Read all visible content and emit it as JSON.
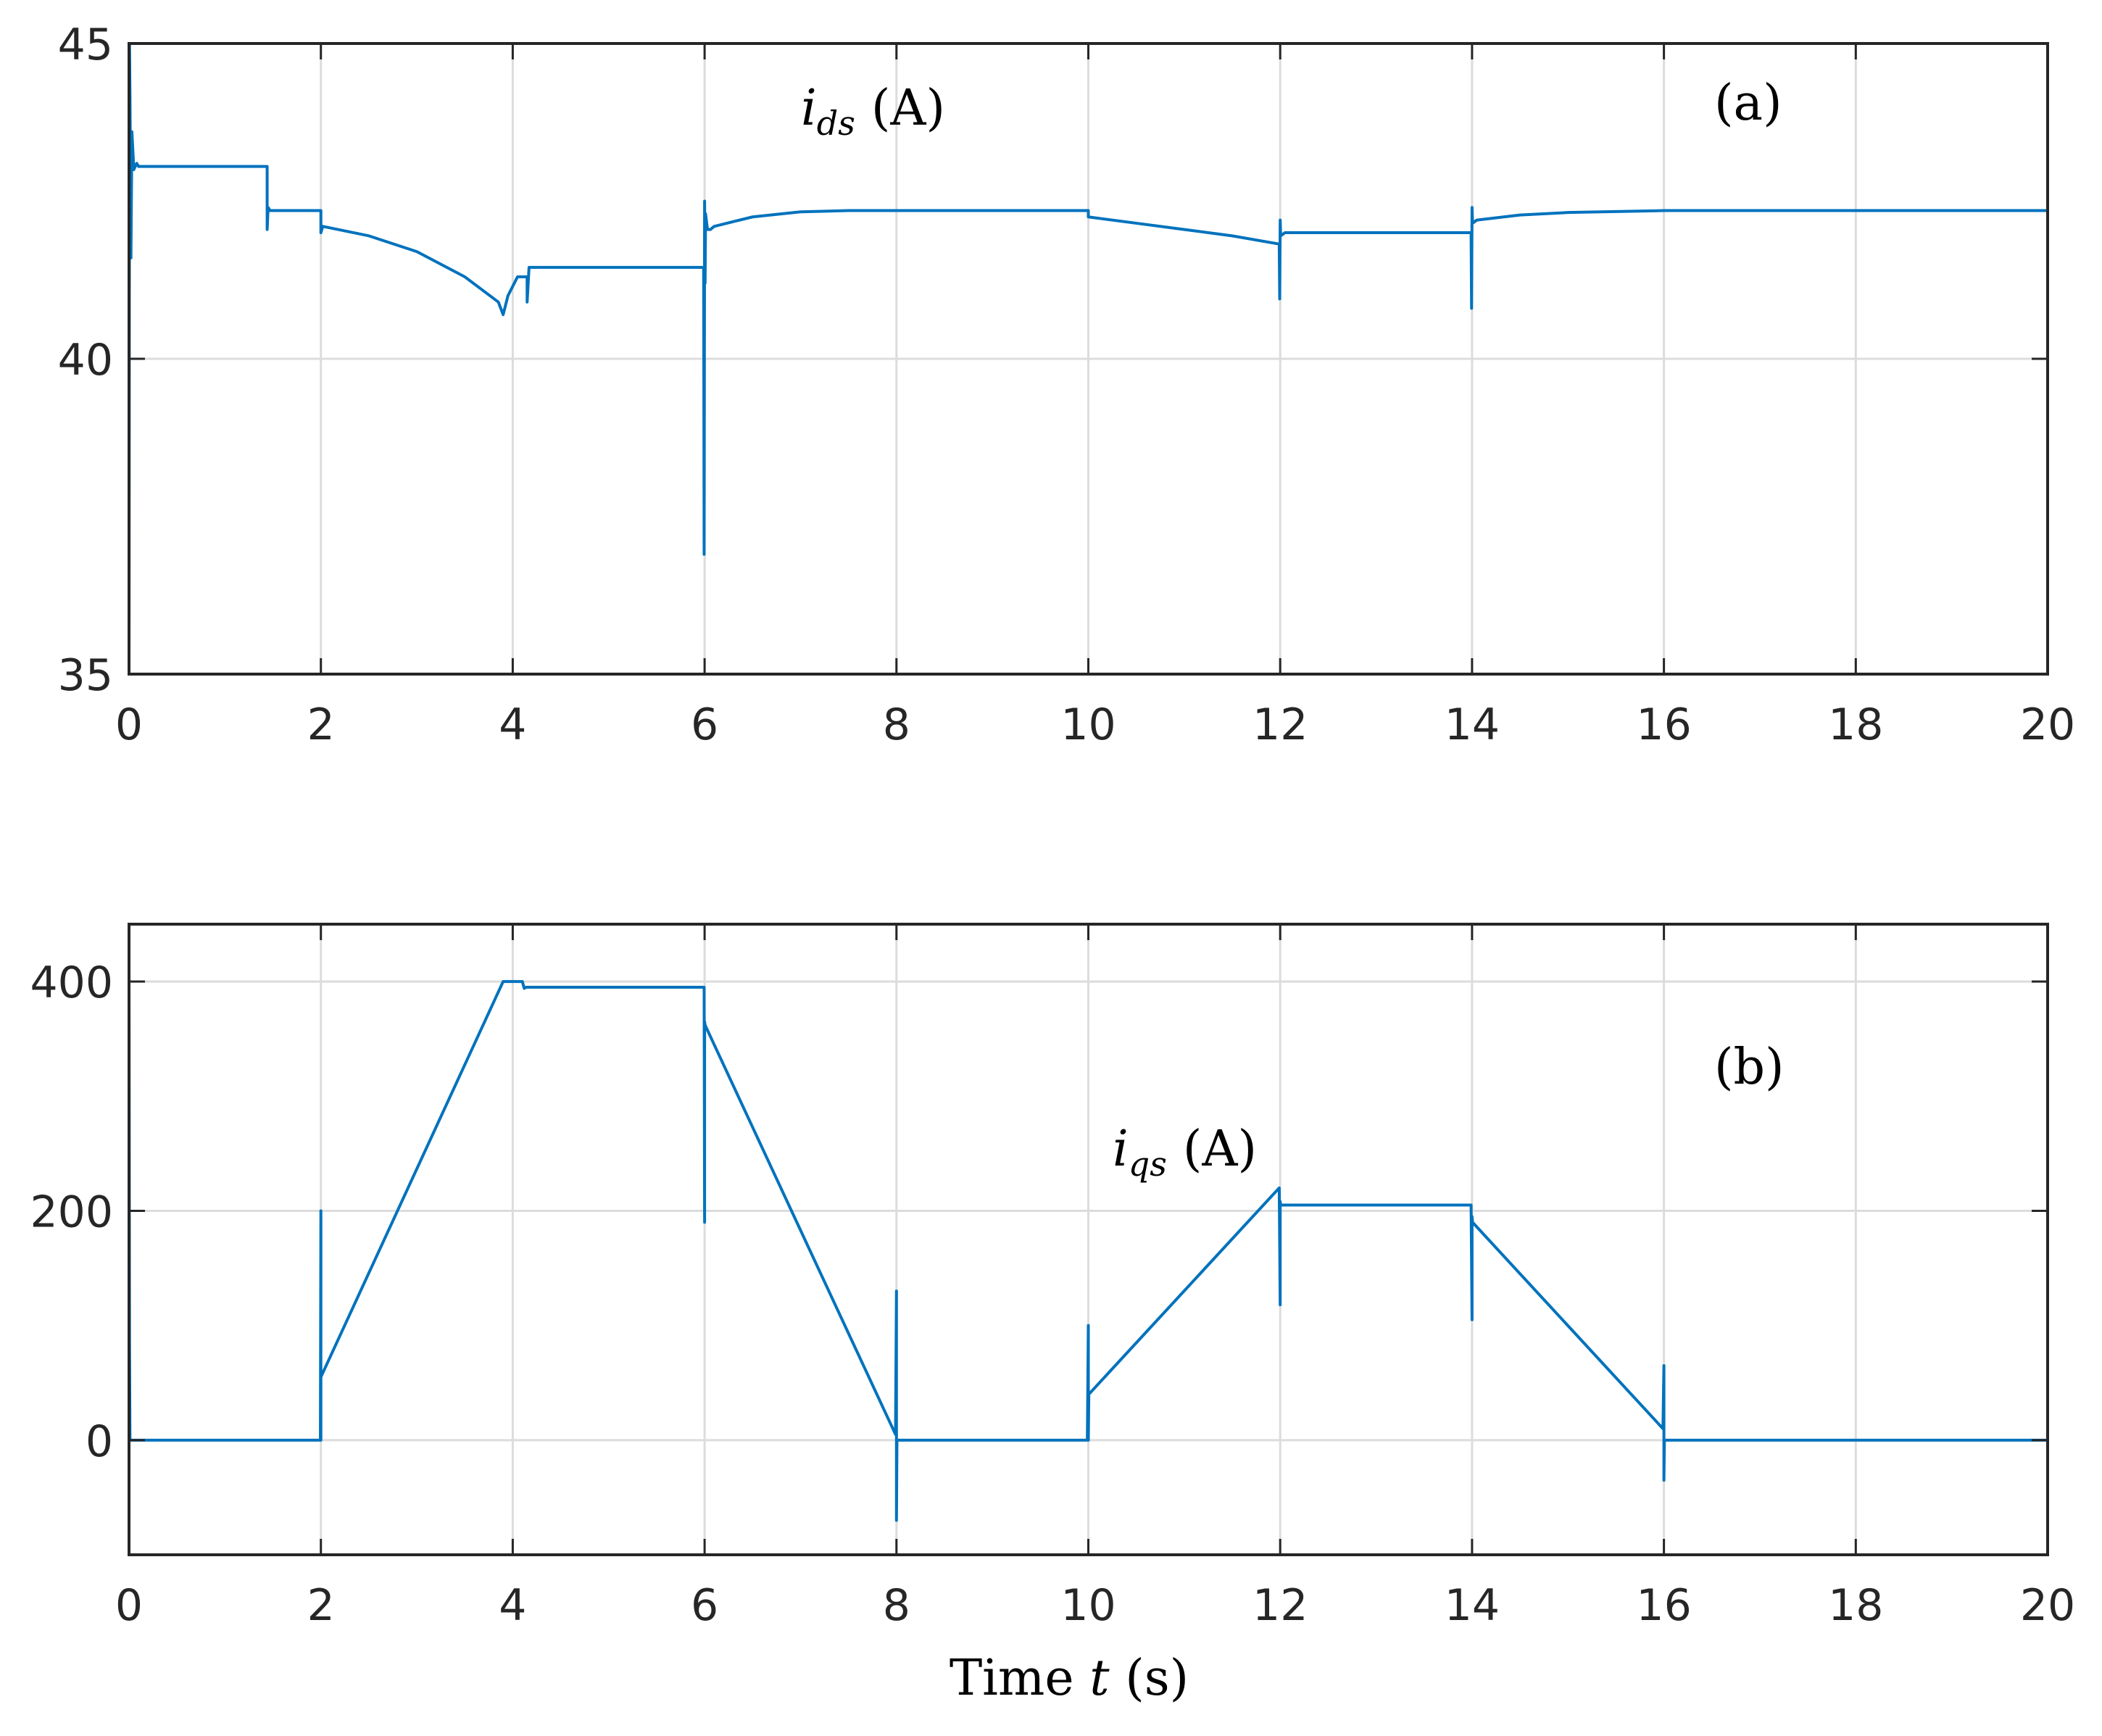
{
  "colors": {
    "line": "#0072BD",
    "grid": "#dcdcdc",
    "axis": "#262626"
  },
  "chart_data": [
    {
      "type": "line",
      "panel": "(a)",
      "annotation": {
        "var": "i",
        "sub": "ds",
        "unit": "(A)"
      },
      "panel_label": "(a)",
      "xlim": [
        0,
        20
      ],
      "ylim": [
        35,
        45
      ],
      "xticks": [
        0,
        2,
        4,
        6,
        8,
        10,
        12,
        14,
        16,
        18,
        20
      ],
      "yticks": [
        35,
        40,
        45
      ],
      "grid": true,
      "series": [
        {
          "x": [
            0,
            0.005,
            0.01,
            0.02,
            0.03,
            0.05,
            0.08,
            0.1,
            1.44,
            1.44,
            1.45,
            1.47,
            1.5,
            2.0,
            2.0,
            2.02,
            2.5,
            3.0,
            3.5,
            3.85,
            3.9,
            3.95,
            4.05,
            4.15,
            4.15,
            4.17,
            4.2,
            5.99,
            5.995,
            6.0,
            6.005,
            6.01,
            6.03,
            6.06,
            6.1,
            6.5,
            7.0,
            7.5,
            8.0,
            10.0,
            10.0,
            10.5,
            11.0,
            11.5,
            11.99,
            11.995,
            12.0,
            12.005,
            12.05,
            13.99,
            13.995,
            14.0,
            14.005,
            14.05,
            14.5,
            15.0,
            16.0,
            20.0
          ],
          "y": [
            35.0,
            45.0,
            44.2,
            41.6,
            43.6,
            43.0,
            43.1,
            43.05,
            43.05,
            42.05,
            42.4,
            42.35,
            42.35,
            42.35,
            42.0,
            42.1,
            41.95,
            41.7,
            41.3,
            40.9,
            40.7,
            41.0,
            41.3,
            41.3,
            40.9,
            41.45,
            41.45,
            41.45,
            36.9,
            42.5,
            41.2,
            42.3,
            42.05,
            42.05,
            42.1,
            42.25,
            42.33,
            42.35,
            42.35,
            42.35,
            42.25,
            42.15,
            42.05,
            41.95,
            41.82,
            40.95,
            42.2,
            41.95,
            42.0,
            42.0,
            40.8,
            42.4,
            42.15,
            42.2,
            42.28,
            42.32,
            42.35,
            42.35
          ]
        }
      ]
    },
    {
      "type": "line",
      "panel": "(b)",
      "annotation": {
        "var": "i",
        "sub": "qs",
        "unit": "(A)"
      },
      "panel_label": "(b)",
      "xlabel": {
        "pre": "Time ",
        "var": "t",
        "post": " (s)"
      },
      "xlim": [
        0,
        20
      ],
      "ylim": [
        -100,
        450
      ],
      "xticks": [
        0,
        2,
        4,
        6,
        8,
        10,
        12,
        14,
        16,
        18,
        20
      ],
      "yticks": [
        0,
        200,
        400
      ],
      "grid": true,
      "series": [
        {
          "x": [
            0,
            0.005,
            0.01,
            1.995,
            2.0,
            2.0,
            2.0,
            3.9,
            4.1,
            4.12,
            4.14,
            5.995,
            6.0,
            6.0,
            6.005,
            7.99,
            8.0,
            8.0,
            8.005,
            9.99,
            10.0,
            10.0,
            10.005,
            11.99,
            12.0,
            12.0,
            12.005,
            13.99,
            14.0,
            14.0,
            14.005,
            15.99,
            16.0,
            16.0,
            16.005,
            20.0
          ],
          "y": [
            400,
            85,
            0,
            0,
            200,
            0,
            55,
            400,
            400,
            394,
            395,
            395,
            190,
            365,
            362,
            5,
            130,
            -70,
            0,
            0,
            100,
            0,
            40,
            220,
            118,
            208,
            205,
            205,
            105,
            195,
            190,
            10,
            65,
            -35,
            0,
            0
          ]
        }
      ]
    }
  ]
}
